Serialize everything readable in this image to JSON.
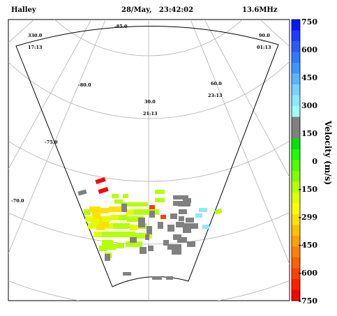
{
  "header": {
    "station": "Halley",
    "datetime": "28/May,   23:42:02",
    "frequency": "13.6MHz"
  },
  "grid_labels": {
    "lat": [
      "-85.0",
      "-80.0",
      "-75.0",
      "-70.0"
    ],
    "mlt": [
      {
        "deg": "330.0",
        "time": "17:13"
      },
      {
        "deg": "90.0",
        "time": "01:13"
      },
      {
        "deg": "60.0",
        "time": "23:13"
      },
      {
        "deg": "30.0",
        "time": "21:13"
      }
    ]
  },
  "colorbar": {
    "title": "Velocity (m/s)",
    "tick_labels": [
      "750",
      "600",
      "450",
      "300",
      "150",
      "0",
      "-150",
      "-299",
      "-450",
      "-600",
      "-750"
    ],
    "colors": [
      "#0a14ff",
      "#1e3cff",
      "#2a5aff",
      "#3278ff",
      "#3c96ff",
      "#5ab4ff",
      "#78d2ff",
      "#8ce8ff",
      "#a0ffff",
      "#808080",
      "#808080",
      "#00e600",
      "#1eff00",
      "#50ff00",
      "#80ff00",
      "#b4ff00",
      "#e0ff00",
      "#ffff00",
      "#ffe000",
      "#ffc000",
      "#ffa000",
      "#ff8000",
      "#ff6000",
      "#ff4000",
      "#ff2000",
      "#ff0000"
    ]
  },
  "chart_data": {
    "type": "heatmap",
    "title": "Halley   28/May,   23:42:02   13.6MHz",
    "value_label": "Velocity (m/s)",
    "value_range": [
      -750,
      750
    ],
    "ground_scatter_color": "#808080",
    "cells_note_units": "velocity in m/s; 'gs' marks ground scatter",
    "cells": [
      {
        "v": -750
      },
      {
        "v": -750
      },
      {
        "v": "gs"
      },
      {
        "v": -150
      },
      {
        "v": -150
      },
      {
        "v": 150
      },
      {
        "v": 150
      },
      {
        "v": -150
      },
      {
        "v": -299
      },
      {
        "v": -299
      },
      {
        "v": -220
      },
      {
        "v": -150
      },
      {
        "v": 150
      },
      {
        "v": 300
      },
      {
        "v": 150
      }
    ]
  }
}
